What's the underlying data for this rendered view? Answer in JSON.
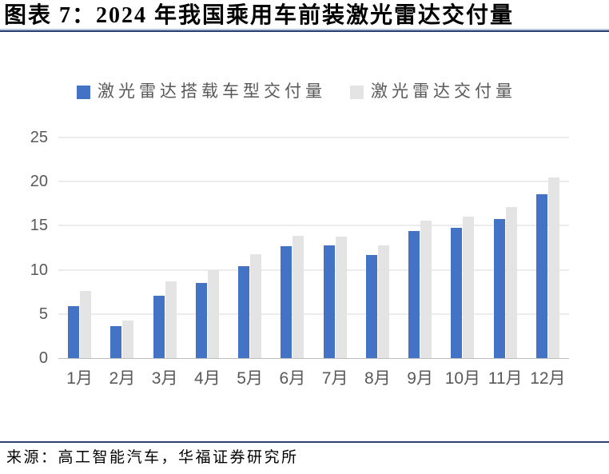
{
  "header": {
    "title": "图表 7：2024 年我国乘用车前装激光雷达交付量"
  },
  "footer": {
    "source": "来源：高工智能汽车，华福证券研究所"
  },
  "colors": {
    "accent_rule": "#2E4272",
    "bar_blue": "#4472C4",
    "bar_gray": "#E4E4E4",
    "axis_text": "#595959",
    "gridline": "#D9D9D9",
    "baseline": "#BFBFBF"
  },
  "chart_data": {
    "type": "bar",
    "title": "2024 年我国乘用车前装激光雷达交付量",
    "categories": [
      "1月",
      "2月",
      "3月",
      "4月",
      "5月",
      "6月",
      "7月",
      "8月",
      "9月",
      "10月",
      "11月",
      "12月"
    ],
    "series": [
      {
        "name": "激光雷达搭载车型交付量",
        "color": "#4472C4",
        "values": [
          5.9,
          3.6,
          7.1,
          8.5,
          10.4,
          12.7,
          12.8,
          11.7,
          14.4,
          14.8,
          15.8,
          18.6
        ]
      },
      {
        "name": "激光雷达交付量",
        "color": "#E4E4E4",
        "values": [
          7.6,
          4.3,
          8.7,
          10.0,
          11.8,
          13.9,
          13.8,
          12.8,
          15.6,
          16.0,
          17.1,
          20.5
        ]
      }
    ],
    "xlabel": "",
    "ylabel": "",
    "ylim": [
      0,
      25
    ],
    "yticks": [
      0,
      5,
      10,
      15,
      20,
      25
    ],
    "grid": true,
    "legend_position": "top"
  }
}
